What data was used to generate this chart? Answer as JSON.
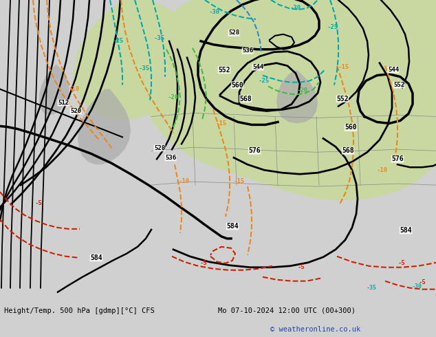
{
  "title_left": "Height/Temp. 500 hPa [gdmp][°C] CFS",
  "title_right": "Mo 07-10-2024 12:00 UTC (00+300)",
  "copyright": "© weatheronline.co.uk",
  "bg_color": "#d0d0d0",
  "land_color": "#c8d8a0",
  "gray_color": "#aaaaaa",
  "hc": "#000000",
  "oc": "#e88820",
  "rc": "#cc2200",
  "tc": "#00aaaa",
  "gc": "#44bb44",
  "bc": "#3388cc",
  "text_blue": "#2244aa",
  "figsize": [
    6.34,
    4.9
  ],
  "dpi": 100
}
